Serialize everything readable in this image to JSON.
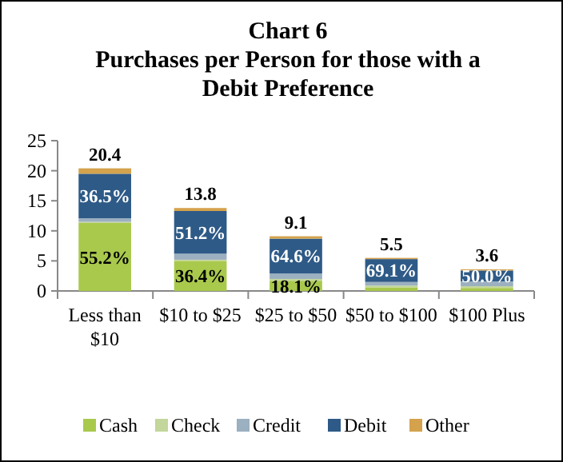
{
  "chart_data": {
    "type": "bar",
    "title": "Chart 6",
    "subtitle": "Purchases per Person for those with  a Debit Preference",
    "categories": [
      "Less than $10",
      "$10 to $25",
      "$25 to $50",
      "$50 to $100",
      "$100 Plus"
    ],
    "stacked": true,
    "series": [
      {
        "name": "Cash",
        "color": "#a9c94d",
        "values": [
          11.3,
          5.0,
          1.7,
          0.6,
          0.5
        ]
      },
      {
        "name": "Check",
        "color": "#c3d69b",
        "values": [
          0.2,
          0.2,
          0.3,
          0.3,
          0.3
        ]
      },
      {
        "name": "Credit",
        "color": "#9bb0c0",
        "values": [
          0.6,
          1.0,
          0.9,
          0.6,
          0.8
        ]
      },
      {
        "name": "Debit",
        "color": "#2e5a87",
        "values": [
          7.4,
          7.1,
          5.8,
          3.8,
          1.8
        ]
      },
      {
        "name": "Other",
        "color": "#d4a24c",
        "values": [
          0.9,
          0.5,
          0.4,
          0.2,
          0.2
        ]
      }
    ],
    "totals": [
      "20.4",
      "13.8",
      "9.1",
      "5.5",
      "3.6"
    ],
    "annotations": [
      "55.2%",
      "36.4%",
      "18.1%",
      "36.5%",
      "51.2%",
      "64.6%",
      "69.1%",
      "50.0%"
    ],
    "ylim": [
      0,
      25
    ],
    "yticks": [
      0,
      5,
      10,
      15,
      20,
      25
    ],
    "legend": "bottom"
  }
}
